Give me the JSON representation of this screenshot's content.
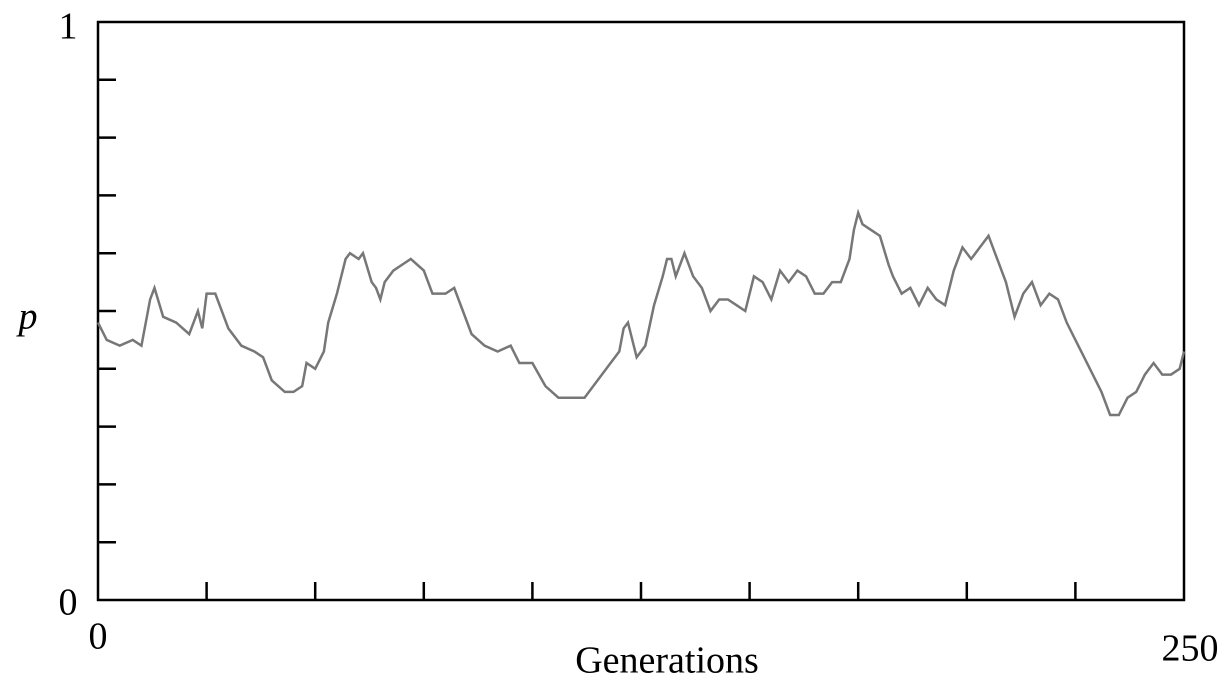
{
  "chart_data": {
    "type": "line",
    "x_label": "Generations",
    "y_label": "p",
    "color": "#777777",
    "xlim": [
      0,
      250
    ],
    "ylim": [
      0,
      1
    ],
    "xticks": [
      0,
      250
    ],
    "yticks": [
      0,
      1
    ],
    "x_minor_ticks": [
      25,
      50,
      75,
      100,
      125,
      150,
      175,
      200,
      225
    ],
    "y_minor_ticks": [
      0.1,
      0.2,
      0.3,
      0.4,
      0.5,
      0.6,
      0.7,
      0.8,
      0.9
    ],
    "x": [
      0,
      2,
      5,
      8,
      10,
      12,
      13,
      15,
      18,
      21,
      23,
      24,
      25,
      27,
      30,
      33,
      36,
      38,
      40,
      43,
      45,
      47,
      48,
      50,
      52,
      53,
      55,
      57,
      58,
      60,
      61,
      63,
      64,
      65,
      66,
      68,
      70,
      72,
      75,
      77,
      80,
      82,
      84,
      86,
      89,
      92,
      95,
      97,
      100,
      103,
      106,
      109,
      112,
      115,
      118,
      120,
      121,
      122,
      124,
      126,
      128,
      130,
      131,
      132,
      133,
      135,
      137,
      139,
      141,
      143,
      145,
      147,
      149,
      151,
      153,
      155,
      157,
      159,
      161,
      163,
      165,
      167,
      169,
      171,
      173,
      174,
      175,
      176,
      178,
      180,
      182,
      183,
      185,
      187,
      189,
      191,
      193,
      195,
      197,
      199,
      201,
      203,
      205,
      207,
      209,
      211,
      213,
      215,
      217,
      219,
      221,
      223,
      225,
      227,
      229,
      231,
      233,
      235,
      237,
      239,
      241,
      243,
      245,
      247,
      249,
      250
    ],
    "values": [
      0.48,
      0.45,
      0.44,
      0.45,
      0.44,
      0.52,
      0.54,
      0.49,
      0.48,
      0.46,
      0.5,
      0.47,
      0.53,
      0.53,
      0.47,
      0.44,
      0.43,
      0.42,
      0.38,
      0.36,
      0.36,
      0.37,
      0.41,
      0.4,
      0.43,
      0.48,
      0.53,
      0.59,
      0.6,
      0.59,
      0.6,
      0.55,
      0.54,
      0.52,
      0.55,
      0.57,
      0.58,
      0.59,
      0.57,
      0.53,
      0.53,
      0.54,
      0.5,
      0.46,
      0.44,
      0.43,
      0.44,
      0.41,
      0.41,
      0.37,
      0.35,
      0.35,
      0.35,
      0.38,
      0.41,
      0.43,
      0.47,
      0.48,
      0.42,
      0.44,
      0.51,
      0.56,
      0.59,
      0.59,
      0.56,
      0.6,
      0.56,
      0.54,
      0.5,
      0.52,
      0.52,
      0.51,
      0.5,
      0.56,
      0.55,
      0.52,
      0.57,
      0.55,
      0.57,
      0.56,
      0.53,
      0.53,
      0.55,
      0.55,
      0.59,
      0.64,
      0.67,
      0.65,
      0.64,
      0.63,
      0.58,
      0.56,
      0.53,
      0.54,
      0.51,
      0.54,
      0.52,
      0.51,
      0.57,
      0.61,
      0.59,
      0.61,
      0.63,
      0.59,
      0.55,
      0.49,
      0.53,
      0.55,
      0.51,
      0.53,
      0.52,
      0.48,
      0.45,
      0.42,
      0.39,
      0.36,
      0.32,
      0.32,
      0.35,
      0.36,
      0.39,
      0.41,
      0.39,
      0.39,
      0.4,
      0.43
    ]
  }
}
